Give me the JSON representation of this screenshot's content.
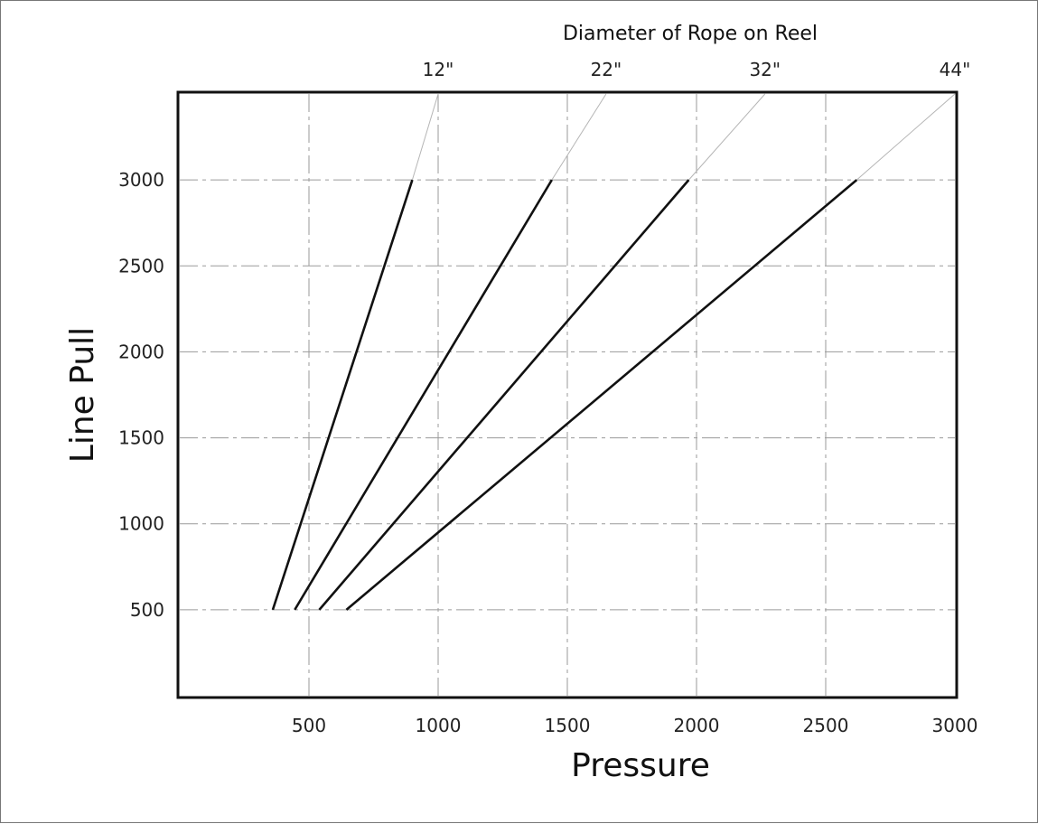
{
  "chart_data": {
    "type": "line",
    "title": "Diameter of Rope on Reel",
    "xlabel": "Pressure",
    "ylabel": "Line Pull",
    "xlim": [
      0,
      3000
    ],
    "ylim": [
      0,
      3500
    ],
    "x_ticks": [
      "500",
      "1000",
      "1500",
      "2000",
      "2500",
      "3000"
    ],
    "y_ticks": [
      "500",
      "1000",
      "1500",
      "2000",
      "2500",
      "3000"
    ],
    "grid": true,
    "legend": "none",
    "series": [
      {
        "name": "12\"",
        "x": [
          360,
          900
        ],
        "y": [
          500,
          3000
        ],
        "extension_to": [
          1000,
          3500
        ]
      },
      {
        "name": "22\"",
        "x": [
          445,
          1440
        ],
        "y": [
          500,
          3000
        ],
        "extension_to": [
          1650,
          3500
        ]
      },
      {
        "name": "32\"",
        "x": [
          540,
          1970
        ],
        "y": [
          500,
          3000
        ],
        "extension_to": [
          2265,
          3500
        ]
      },
      {
        "name": "44\"",
        "x": [
          645,
          2620
        ],
        "y": [
          500,
          3000
        ],
        "extension_to": [
          3000,
          3500
        ]
      }
    ]
  }
}
